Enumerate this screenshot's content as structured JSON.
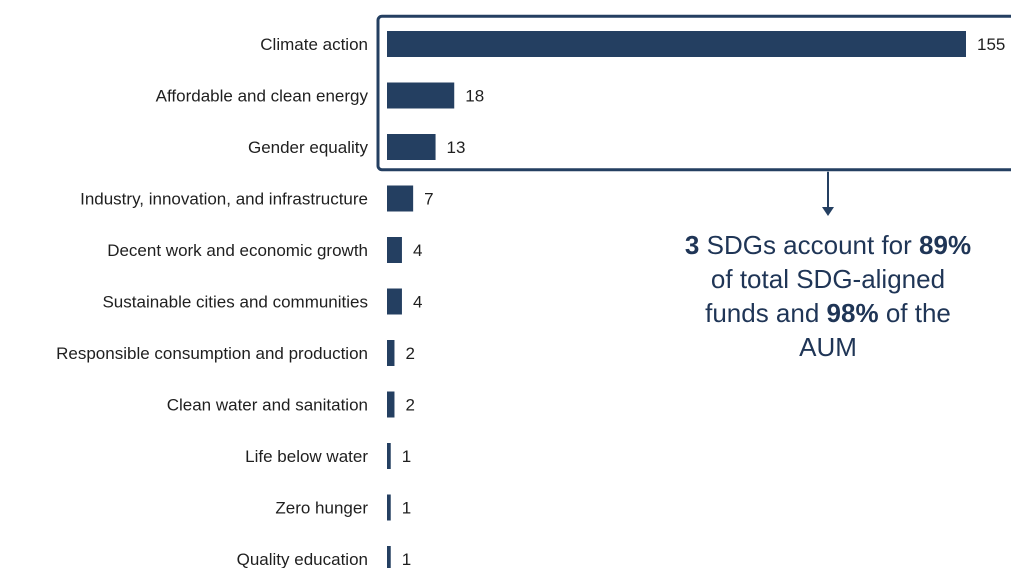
{
  "chart_data": {
    "type": "bar",
    "orientation": "horizontal",
    "categories": [
      "Climate action",
      "Affordable and clean energy",
      "Gender equality",
      "Industry, innovation, and infrastructure",
      "Decent work and economic growth",
      "Sustainable cities and communities",
      "Responsible consumption and production",
      "Clean water and sanitation",
      "Life below water",
      "Zero hunger",
      "Quality education"
    ],
    "values": [
      155,
      18,
      13,
      7,
      4,
      4,
      2,
      2,
      1,
      1,
      1
    ],
    "xlim": [
      0,
      155
    ],
    "grid": false,
    "legend": "none",
    "bar_color": "#243f61",
    "highlight": {
      "categories": [
        "Climate action",
        "Affordable and clean energy",
        "Gender equality"
      ],
      "box_color": "#243f61"
    }
  },
  "callout": {
    "n1": "3",
    "t1": " SDGs account for ",
    "n2": "89%",
    "t2": " of total SDG-aligned funds and ",
    "n3": "98%",
    "t3": " of the AUM",
    "color": "#1f3556"
  }
}
